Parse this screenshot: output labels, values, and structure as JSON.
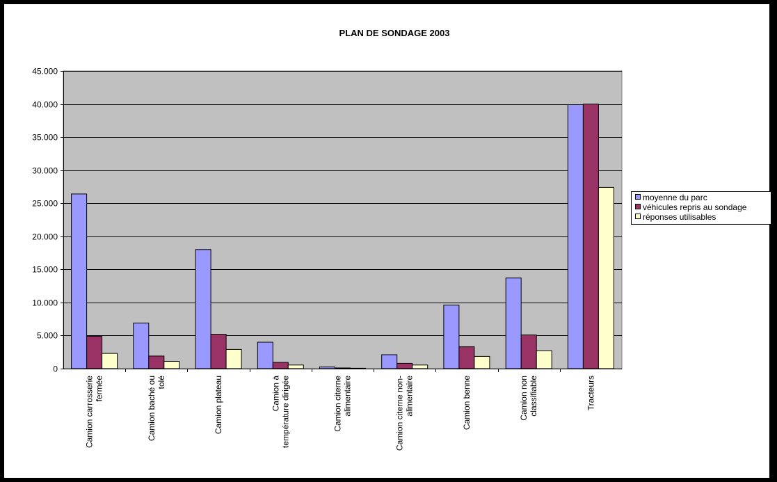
{
  "chart_data": {
    "type": "bar",
    "title": "PLAN DE SONDAGE 2003",
    "xlabel": "",
    "ylabel": "",
    "ylim": [
      0,
      45000
    ],
    "yticks": [
      0,
      5000,
      10000,
      15000,
      20000,
      25000,
      30000,
      35000,
      40000,
      45000
    ],
    "ytick_labels": [
      "0",
      "5.000",
      "10.000",
      "15.000",
      "20.000",
      "25.000",
      "30.000",
      "35.000",
      "40.000",
      "45.000"
    ],
    "grid": true,
    "legend_position": "right",
    "categories": [
      [
        "Camion carrosserie",
        "fermée"
      ],
      [
        "Camion baché ou",
        "tolé"
      ],
      [
        "Camion plateau"
      ],
      [
        "Camion à",
        "température dirigée"
      ],
      [
        "Camion citerne",
        "alimentaire"
      ],
      [
        "Camion citerne non-",
        "alimentaire"
      ],
      [
        "Camion benne"
      ],
      [
        "Camion non",
        "classifiable"
      ],
      [
        "Tracteurs"
      ]
    ],
    "series": [
      {
        "name": "moyenne du parc",
        "color": "#9999FF",
        "values": [
          26400,
          6900,
          18000,
          4000,
          250,
          2100,
          9600,
          13700,
          39900
        ]
      },
      {
        "name": "véhicules repris au sondage",
        "color": "#993366",
        "values": [
          4900,
          1900,
          5200,
          950,
          100,
          800,
          3300,
          5100,
          40000
        ]
      },
      {
        "name": "réponses utilisables",
        "color": "#FFFFCC",
        "values": [
          2300,
          1100,
          2900,
          550,
          60,
          550,
          1850,
          2700,
          27400
        ]
      }
    ],
    "plot_background": "#C0C0C0"
  }
}
